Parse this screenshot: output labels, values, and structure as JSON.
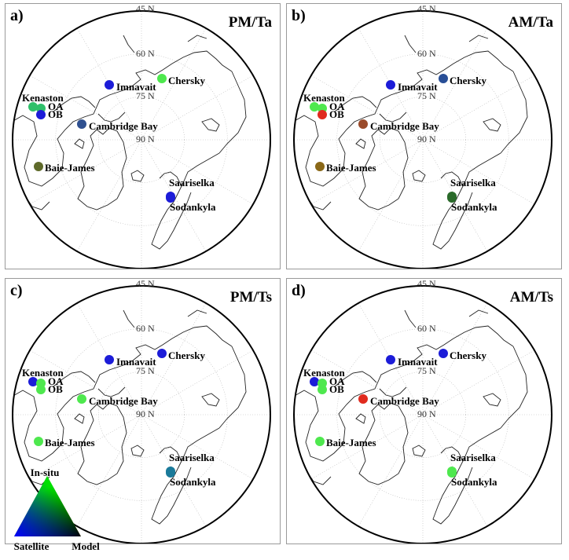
{
  "panels": [
    {
      "label": "a)",
      "title": "PM/Ta",
      "sites": [
        {
          "name": "Chersky",
          "color": "#4ee84e"
        },
        {
          "name": "Imnavait",
          "color": "#1c1cd8"
        },
        {
          "name": "Kenaston",
          "color": "#2fc06a"
        },
        {
          "name": "OA",
          "color": "#2fc06a"
        },
        {
          "name": "OB",
          "color": "#1c1cd8"
        },
        {
          "name": "Cambridge Bay",
          "color": "#2f5090"
        },
        {
          "name": "Baie-James",
          "color": "#5f6a2a"
        },
        {
          "name": "Saariselka",
          "color": "#1c1cd8"
        },
        {
          "name": "Sodankyla",
          "color": "#1c1cd8"
        }
      ]
    },
    {
      "label": "b)",
      "title": "AM/Ta",
      "sites": [
        {
          "name": "Chersky",
          "color": "#284e96"
        },
        {
          "name": "Imnavait",
          "color": "#1c1cd8"
        },
        {
          "name": "Kenaston",
          "color": "#4ee84e"
        },
        {
          "name": "OA",
          "color": "#4ee84e"
        },
        {
          "name": "OB",
          "color": "#e02a1e"
        },
        {
          "name": "Cambridge Bay",
          "color": "#9a4a2a"
        },
        {
          "name": "Baie-James",
          "color": "#8a6818"
        },
        {
          "name": "Saariselka",
          "color": "#2a6a2a"
        },
        {
          "name": "Sodankyla",
          "color": "#2a6a2a"
        }
      ]
    },
    {
      "label": "c)",
      "title": "PM/Ts",
      "sites": [
        {
          "name": "Chersky",
          "color": "#1c1cd8"
        },
        {
          "name": "Imnavait",
          "color": "#1c1cd8"
        },
        {
          "name": "Kenaston",
          "color": "#1c1cd8"
        },
        {
          "name": "OA",
          "color": "#4ee84e"
        },
        {
          "name": "OB",
          "color": "#4ee84e"
        },
        {
          "name": "Cambridge Bay",
          "color": "#4ee84e"
        },
        {
          "name": "Baie-James",
          "color": "#4ee84e"
        },
        {
          "name": "Saariselka",
          "color": "#1a7a9a"
        },
        {
          "name": "Sodankyla",
          "color": "#1a7a9a"
        }
      ]
    },
    {
      "label": "d)",
      "title": "AM/Ts",
      "sites": [
        {
          "name": "Chersky",
          "color": "#1c1cd8"
        },
        {
          "name": "Imnavait",
          "color": "#1c1cd8"
        },
        {
          "name": "Kenaston",
          "color": "#1c1cd8"
        },
        {
          "name": "OA",
          "color": "#4ee84e"
        },
        {
          "name": "OB",
          "color": "#4ee84e"
        },
        {
          "name": "Cambridge Bay",
          "color": "#e02a1e"
        },
        {
          "name": "Baie-James",
          "color": "#4ee84e"
        },
        {
          "name": "Saariselka",
          "color": "#4ee84e"
        },
        {
          "name": "Sodankyla",
          "color": "#4ee84e"
        }
      ]
    }
  ],
  "lat_labels": [
    "45 N",
    "60 N",
    "75 N",
    "90 N"
  ],
  "legend": {
    "top": "In-situ",
    "left": "Satellite",
    "right": "Model"
  }
}
